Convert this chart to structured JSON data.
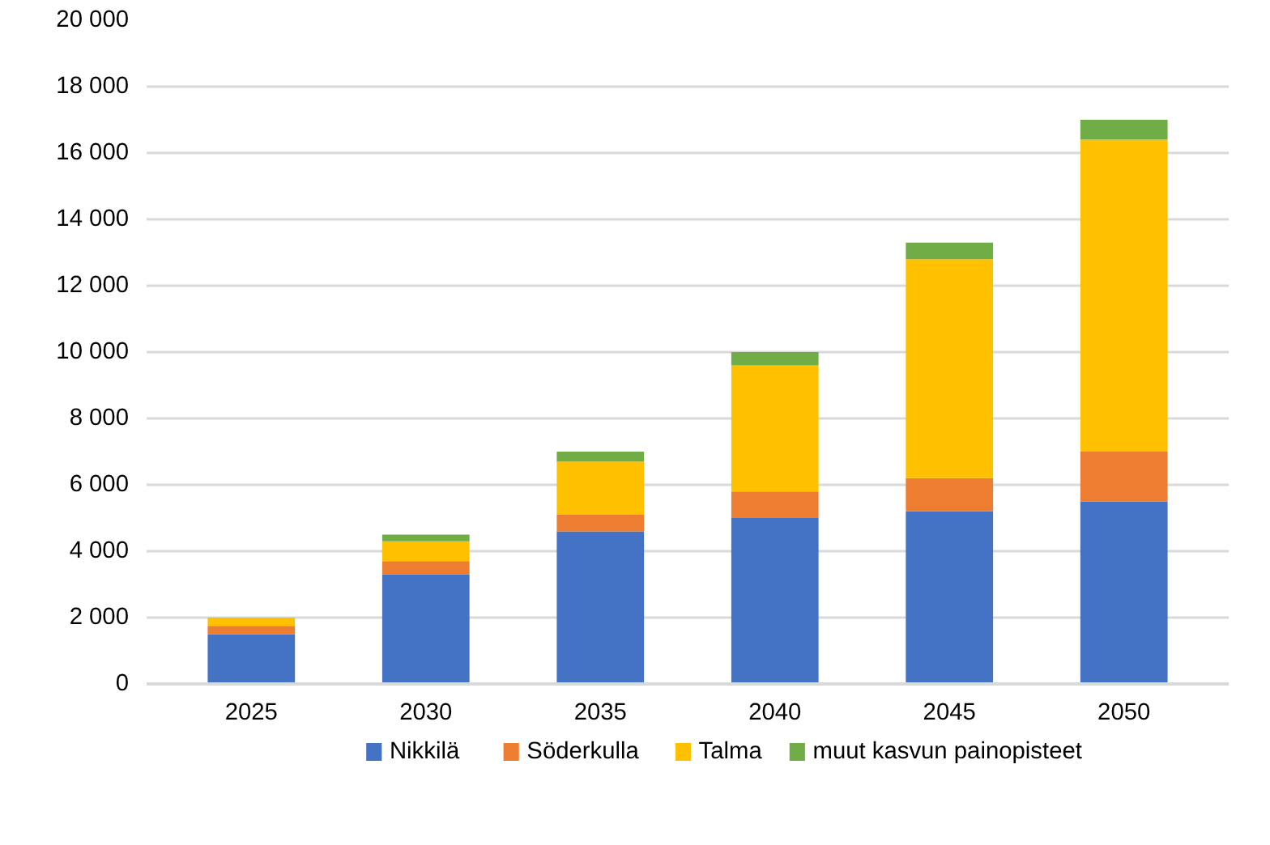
{
  "chart_data": {
    "type": "bar",
    "stacked": true,
    "categories": [
      "2025",
      "2030",
      "2035",
      "2040",
      "2045",
      "2050"
    ],
    "series": [
      {
        "name": "Nikkilä",
        "color": "#4472c4",
        "values": [
          1500,
          3300,
          4600,
          5000,
          5200,
          5500
        ]
      },
      {
        "name": "Söderkulla",
        "color": "#ed7d31",
        "values": [
          250,
          400,
          500,
          800,
          1000,
          1500
        ]
      },
      {
        "name": "Talma",
        "color": "#ffc000",
        "values": [
          250,
          600,
          1600,
          3800,
          6600,
          9400
        ]
      },
      {
        "name": "muut kasvun painopisteet",
        "color": "#70ad47",
        "values": [
          0,
          200,
          300,
          400,
          500,
          600
        ]
      }
    ],
    "ylim": [
      0,
      20000
    ],
    "yticks": [
      0,
      {
        "value": 2000,
        "label": "2 000"
      },
      {
        "value": 4000,
        "label": "4 000"
      },
      {
        "value": 6000,
        "label": "6 000"
      },
      {
        "value": 8000,
        "label": "8 000"
      },
      {
        "value": 10000,
        "label": "10 000"
      },
      {
        "value": 12000,
        "label": "12 000"
      },
      {
        "value": 14000,
        "label": "14 000"
      },
      {
        "value": 16000,
        "label": "16 000"
      },
      {
        "value": 18000,
        "label": "18 000"
      },
      {
        "value": 20000,
        "label": "20 000"
      }
    ],
    "grid": "y",
    "legend": "bottom"
  }
}
